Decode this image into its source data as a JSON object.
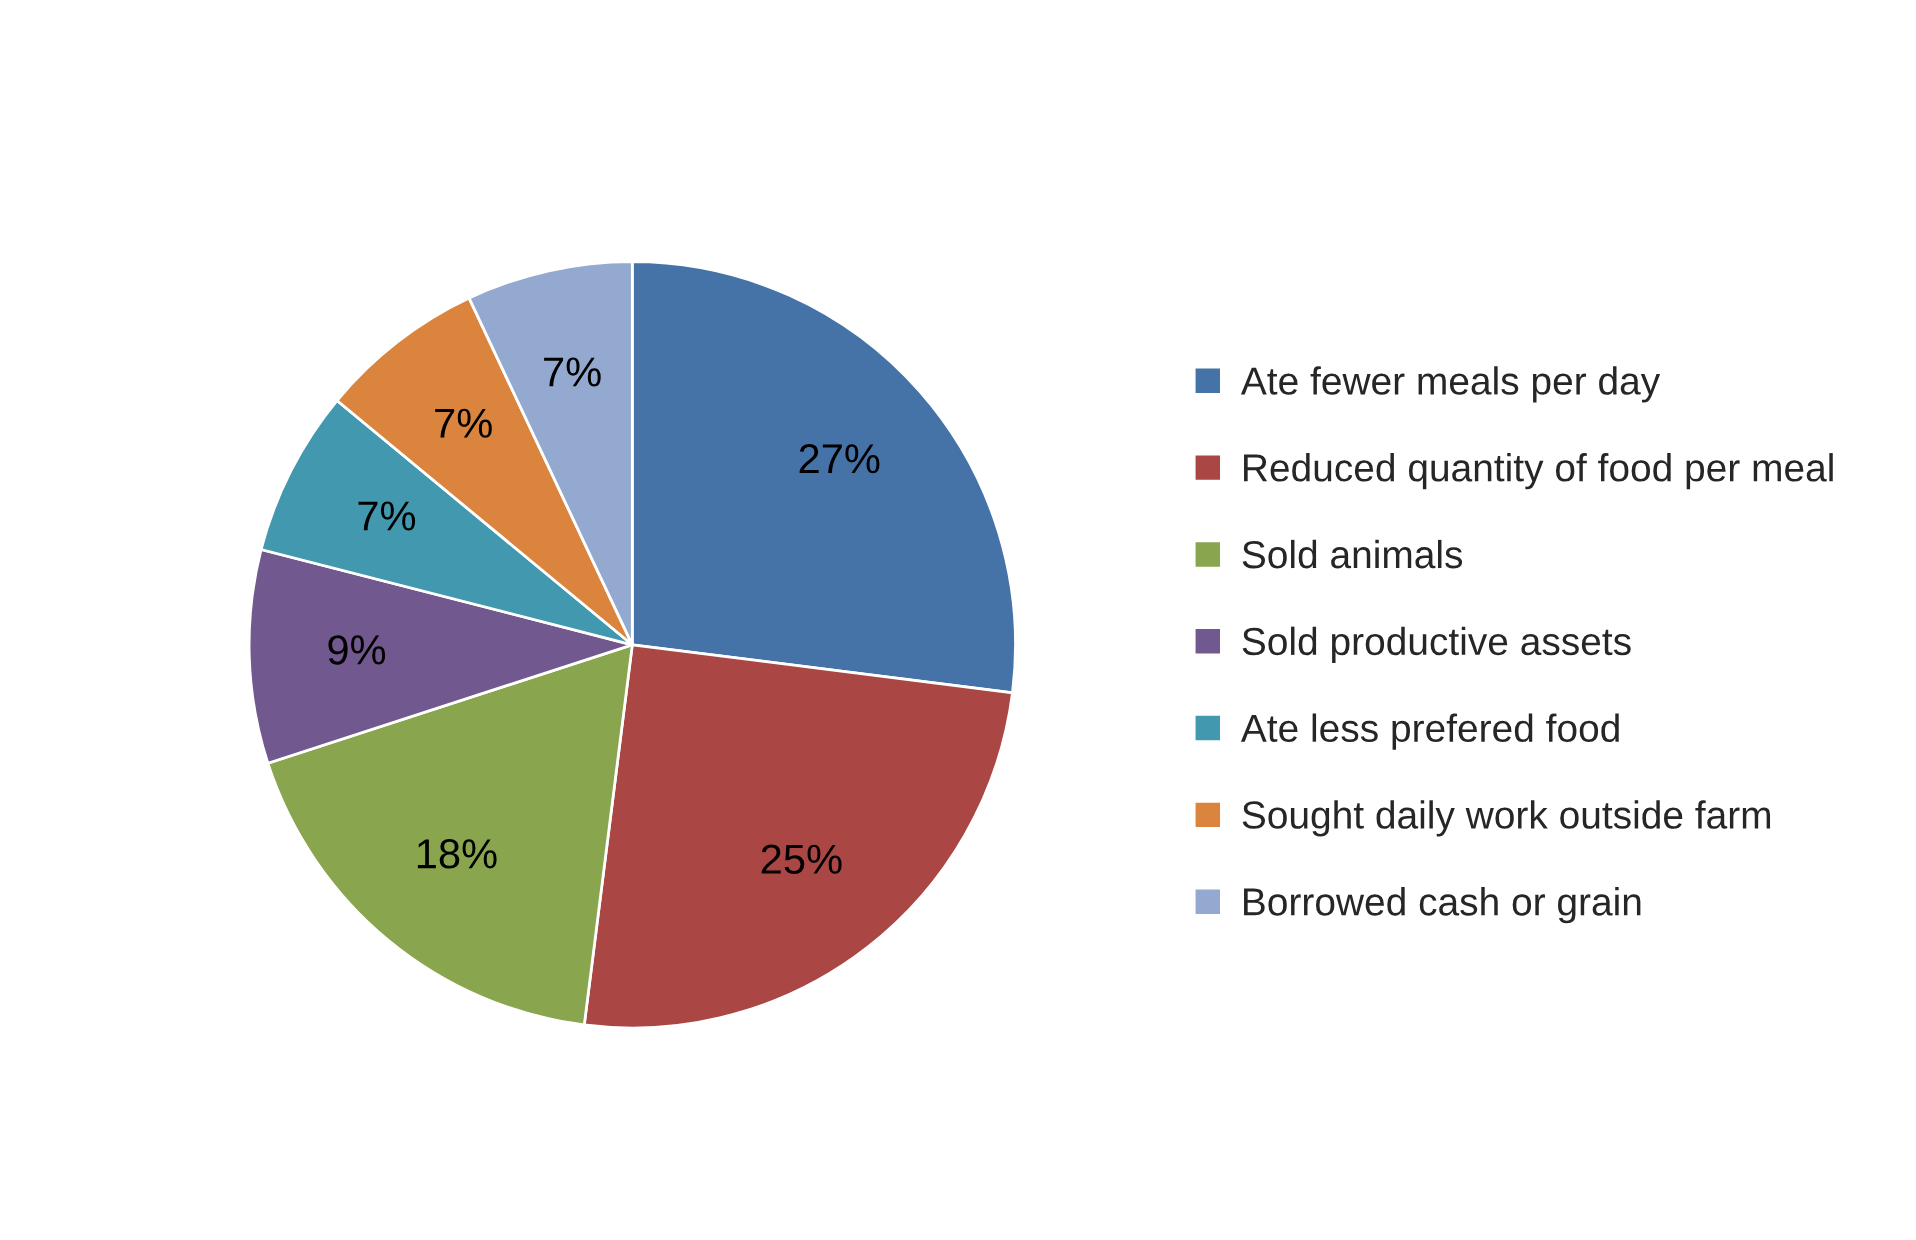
{
  "chart_data": {
    "type": "pie",
    "categories": [
      "Ate fewer meals per day",
      "Reduced quantity of food per meal",
      "Sold animals",
      "Sold productive assets",
      "Ate less prefered food",
      "Sought daily work outside farm",
      "Borrowed cash or grain"
    ],
    "values": [
      27,
      25,
      18,
      9,
      7,
      7,
      7
    ],
    "colors": [
      "#4572a7",
      "#aa4643",
      "#89a54e",
      "#71588f",
      "#4198af",
      "#db843d",
      "#93a9cf"
    ],
    "value_labels": [
      "27%",
      "25%",
      "18%",
      "9%",
      "7%",
      "7%",
      "7%"
    ],
    "legend": "right"
  }
}
